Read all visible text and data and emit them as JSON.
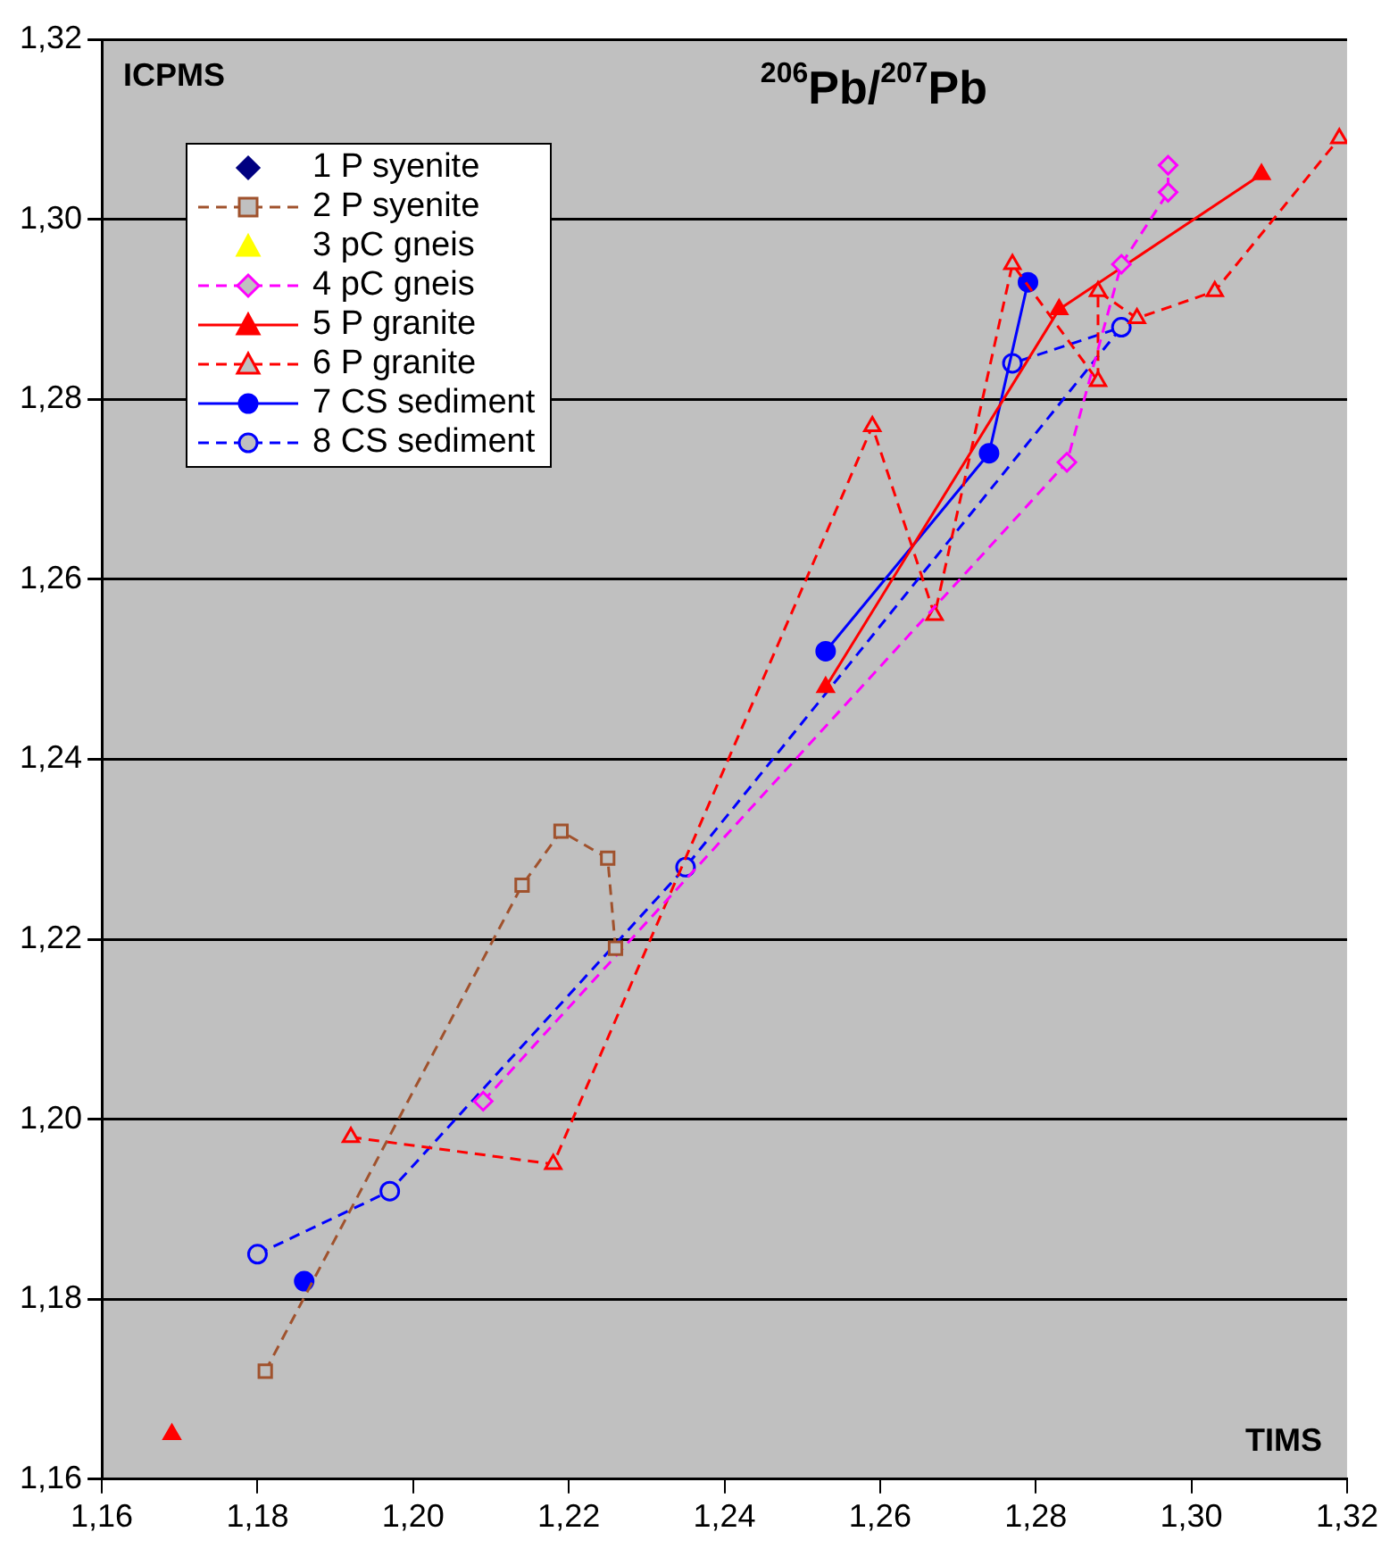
{
  "chart_data": {
    "type": "line",
    "title": "$^{206}$Pb/$^{207}$Pb",
    "ylabel": "ICPMS",
    "xlabel": "TIMS",
    "xlim": [
      1.16,
      1.32
    ],
    "ylim": [
      1.16,
      1.32
    ],
    "xticks": [
      {
        "value": 1.16,
        "label": "1,16"
      },
      {
        "value": 1.18,
        "label": "1,18"
      },
      {
        "value": 1.2,
        "label": "1,20"
      },
      {
        "value": 1.22,
        "label": "1,22"
      },
      {
        "value": 1.24,
        "label": "1,24"
      },
      {
        "value": 1.26,
        "label": "1,26"
      },
      {
        "value": 1.28,
        "label": "1,28"
      },
      {
        "value": 1.3,
        "label": "1,30"
      },
      {
        "value": 1.32,
        "label": "1,32"
      }
    ],
    "yticks": [
      {
        "value": 1.16,
        "label": "1,16"
      },
      {
        "value": 1.18,
        "label": "1,18"
      },
      {
        "value": 1.2,
        "label": "1,20"
      },
      {
        "value": 1.22,
        "label": "1,22"
      },
      {
        "value": 1.24,
        "label": "1,24"
      },
      {
        "value": 1.26,
        "label": "1,26"
      },
      {
        "value": 1.28,
        "label": "1,28"
      },
      {
        "value": 1.3,
        "label": "1,30"
      },
      {
        "value": 1.32,
        "label": "1,32"
      }
    ],
    "grid": "y",
    "legend": "top left",
    "series": [
      {
        "name": "1 P syenite",
        "type": "scatter",
        "color": "#000080",
        "marker": "diamond"
      },
      {
        "name": "2 P syenite",
        "color": "#a0522d",
        "marker": "square",
        "line_style": "dashed",
        "x": [
          1.181,
          1.214,
          1.219,
          1.225,
          1.226
        ],
        "values": [
          1.172,
          1.226,
          1.232,
          1.229,
          1.219
        ]
      },
      {
        "name": "3 pC gneis",
        "type": "scatter",
        "color": "#ffff00",
        "marker": "triangle"
      },
      {
        "name": "4 pC gneis",
        "color": "#ff00ff",
        "marker": "diamond",
        "line_style": "dashed",
        "x": [
          1.209,
          1.284,
          1.291,
          1.297,
          1.297
        ],
        "values": [
          1.202,
          1.273,
          1.295,
          1.303,
          1.306
        ]
      },
      {
        "name": "5 P granite",
        "color": "#ff0000",
        "marker": "triangle",
        "line_style": "solid",
        "x": [
          1.169,
          null,
          1.253,
          1.283,
          1.309
        ],
        "values": [
          1.165,
          null,
          1.248,
          1.29,
          1.305
        ]
      },
      {
        "name": "6 P granite",
        "color": "#ff0000",
        "marker": "triangle",
        "line_style": "dashed",
        "x": [
          1.192,
          1.218,
          1.259,
          1.267,
          1.277,
          1.288,
          1.288,
          1.293,
          1.303,
          1.319
        ],
        "values": [
          1.198,
          1.195,
          1.277,
          1.256,
          1.295,
          1.282,
          1.292,
          1.289,
          1.292,
          1.309
        ]
      },
      {
        "name": "7 CS sediment",
        "color": "#0000ff",
        "marker": "circle",
        "line_style": "solid",
        "x": [
          1.186,
          null,
          1.253,
          1.274,
          1.279
        ],
        "values": [
          1.182,
          null,
          1.252,
          1.274,
          1.293
        ]
      },
      {
        "name": "8 CS sediment",
        "color": "#0000ff",
        "marker": "circle",
        "line_style": "dashed",
        "x": [
          1.18,
          1.197,
          1.235,
          1.291,
          1.277
        ],
        "values": [
          1.185,
          1.192,
          1.228,
          1.288,
          1.284
        ]
      }
    ]
  }
}
